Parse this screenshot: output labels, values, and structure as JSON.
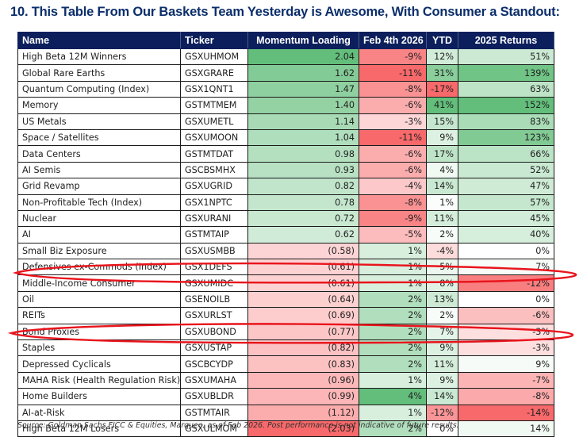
{
  "title": "10. This Table From Our Baskets Team Yesterday is Awesome, With Consumer a Standout:",
  "table": {
    "headers": {
      "name": "Name",
      "ticker": "Ticker",
      "momentum": "Momentum Loading",
      "feb4": "Feb 4th 2026",
      "ytd": "YTD",
      "ret2025": "2025 Returns"
    },
    "rows": [
      {
        "name": "High Beta 12M Winners",
        "ticker": "GSXUHMOM",
        "momentum": 2.04,
        "feb4": -9,
        "ytd": 12,
        "ret2025": 51
      },
      {
        "name": "Global Rare Earths",
        "ticker": "GSXGRARE",
        "momentum": 1.62,
        "feb4": -11,
        "ytd": 31,
        "ret2025": 139
      },
      {
        "name": "Quantum Computing (Index)",
        "ticker": "GSX1QNT1",
        "momentum": 1.47,
        "feb4": -8,
        "ytd": -17,
        "ret2025": 63
      },
      {
        "name": "Memory",
        "ticker": "GSTMTMEM",
        "momentum": 1.4,
        "feb4": -6,
        "ytd": 41,
        "ret2025": 152
      },
      {
        "name": "US Metals",
        "ticker": "GSXUMETL",
        "momentum": 1.14,
        "feb4": -3,
        "ytd": 15,
        "ret2025": 83
      },
      {
        "name": "Space / Satellites",
        "ticker": "GSXUMOON",
        "momentum": 1.04,
        "feb4": -11,
        "ytd": 9,
        "ret2025": 123
      },
      {
        "name": "Data Centers",
        "ticker": "GSTMTDAT",
        "momentum": 0.98,
        "feb4": -6,
        "ytd": 17,
        "ret2025": 66
      },
      {
        "name": "AI Semis",
        "ticker": "GSCBSMHX",
        "momentum": 0.93,
        "feb4": -6,
        "ytd": 4,
        "ret2025": 52
      },
      {
        "name": "Grid Revamp",
        "ticker": "GSXUGRID",
        "momentum": 0.82,
        "feb4": -4,
        "ytd": 14,
        "ret2025": 47
      },
      {
        "name": "Non-Profitable Tech (Index)",
        "ticker": "GSX1NPTC",
        "momentum": 0.78,
        "feb4": -8,
        "ytd": 1,
        "ret2025": 57
      },
      {
        "name": "Nuclear",
        "ticker": "GSXURANI",
        "momentum": 0.72,
        "feb4": -9,
        "ytd": 11,
        "ret2025": 45
      },
      {
        "name": "AI",
        "ticker": "GSTMTAIP",
        "momentum": 0.62,
        "feb4": -5,
        "ytd": 2,
        "ret2025": 40
      },
      {
        "name": "Small Biz Exposure",
        "ticker": "GSXUSMBB",
        "momentum": -0.58,
        "feb4": 1,
        "ytd": -4,
        "ret2025": 0
      },
      {
        "name": "Defensives ex-Commods (Index)",
        "ticker": "GSX1DEFS",
        "momentum": -0.61,
        "feb4": 1,
        "ytd": 5,
        "ret2025": 7
      },
      {
        "name": "Middle-Income Consumer",
        "ticker": "GSXUMIDC",
        "momentum": -0.61,
        "feb4": 1,
        "ytd": 8,
        "ret2025": -12
      },
      {
        "name": "Oil",
        "ticker": "GSENOILB",
        "momentum": -0.64,
        "feb4": 2,
        "ytd": 13,
        "ret2025": 0
      },
      {
        "name": "REITs",
        "ticker": "GSXURLST",
        "momentum": -0.69,
        "feb4": 2,
        "ytd": 2,
        "ret2025": -6
      },
      {
        "name": "Bond Proxies",
        "ticker": "GSXUBOND",
        "momentum": -0.77,
        "feb4": 2,
        "ytd": 7,
        "ret2025": -3
      },
      {
        "name": "Staples",
        "ticker": "GSXUSTAP",
        "momentum": -0.82,
        "feb4": 2,
        "ytd": 9,
        "ret2025": -3
      },
      {
        "name": "Depressed Cyclicals",
        "ticker": "GSCBCYDP",
        "momentum": -0.83,
        "feb4": 2,
        "ytd": 11,
        "ret2025": 9
      },
      {
        "name": "MAHA Risk (Health Regulation Risk)",
        "ticker": "GSXUMAHA",
        "momentum": -0.96,
        "feb4": 1,
        "ytd": 9,
        "ret2025": -7
      },
      {
        "name": "Home Builders",
        "ticker": "GSXUBLDR",
        "momentum": -0.99,
        "feb4": 4,
        "ytd": 14,
        "ret2025": -8
      },
      {
        "name": "AI-at-Risk",
        "ticker": "GSTMTAIR",
        "momentum": -1.12,
        "feb4": 1,
        "ytd": -12,
        "ret2025": -14
      },
      {
        "name": "High Beta 12M Losers",
        "ticker": "GSXULMOM",
        "momentum": -2.03,
        "feb4": 2,
        "ytd": 0,
        "ret2025": 14
      }
    ],
    "highlighted_rows": [
      "Middle-Income Consumer",
      "Staples"
    ]
  },
  "colors": {
    "title": "#0b2e6b",
    "header_bg": "#0c1f5c",
    "header_text": "#ffffff",
    "scale_green": "#63be7b",
    "scale_red": "#f8696b",
    "scale_mid": "#ffffff",
    "annotation_red": "#e8141c"
  },
  "source": "Source: Goldman Sachs FICC & Equities, Marquee, as of Feb 2026. Post performance is not indicative of future results."
}
